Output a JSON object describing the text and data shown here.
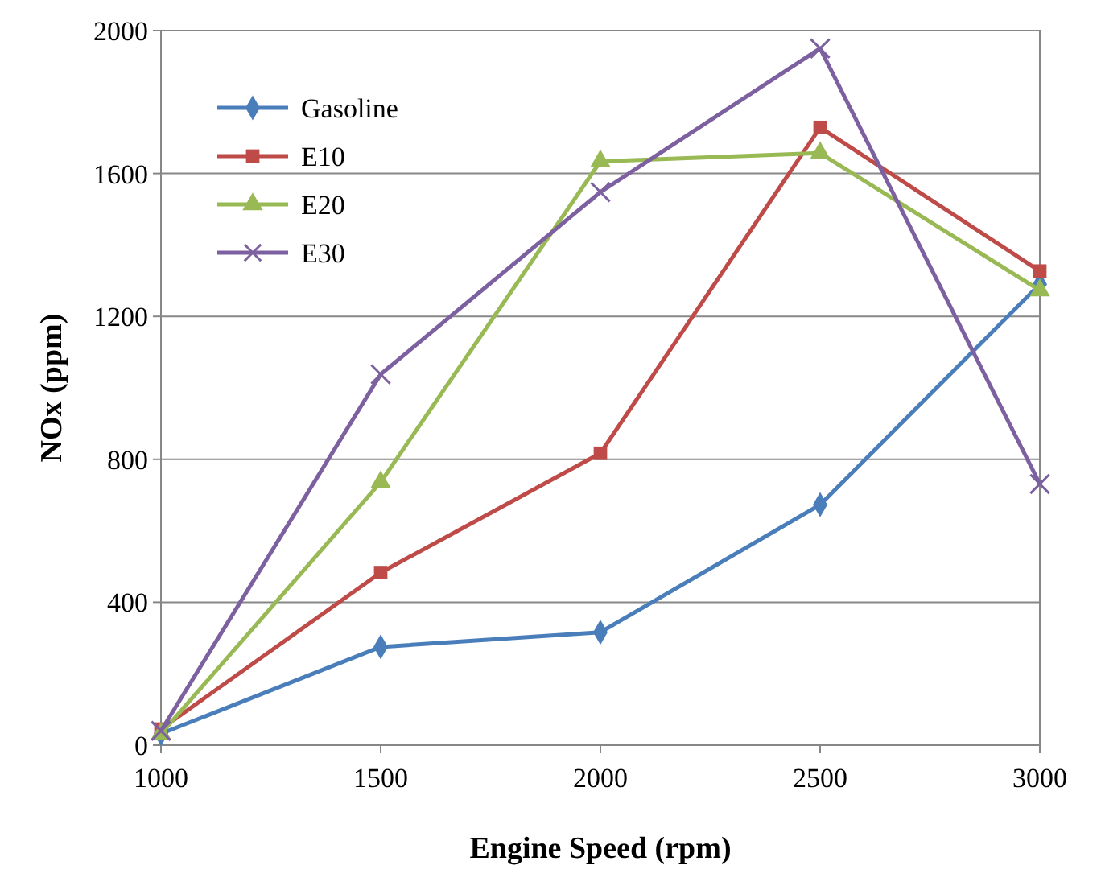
{
  "chart_data": {
    "type": "line",
    "xlabel": "Engine Speed (rpm)",
    "ylabel": "NOx (ppm)",
    "x": [
      1000,
      1500,
      2000,
      2500,
      3000
    ],
    "xlim": [
      1000,
      3000
    ],
    "xticks": [
      1000,
      1500,
      2000,
      2500,
      3000
    ],
    "ylim": [
      0,
      2000
    ],
    "yticks": [
      0,
      400,
      800,
      1200,
      1600,
      2000
    ],
    "grid": "y",
    "legend": "top left",
    "series": [
      {
        "name": "Gasoline",
        "color": "#4a7ebb",
        "marker": "diamond",
        "values": [
          32,
          275,
          316,
          673,
          1290
        ]
      },
      {
        "name": "E10",
        "color": "#be4b48",
        "marker": "square",
        "values": [
          45,
          483,
          817,
          1729,
          1327
        ]
      },
      {
        "name": "E20",
        "color": "#98b954",
        "marker": "triangle",
        "values": [
          32,
          736,
          1634,
          1657,
          1273
        ]
      },
      {
        "name": "E30",
        "color": "#7d60a0",
        "marker": "cross",
        "values": [
          40,
          1038,
          1548,
          1950,
          731
        ]
      }
    ]
  }
}
